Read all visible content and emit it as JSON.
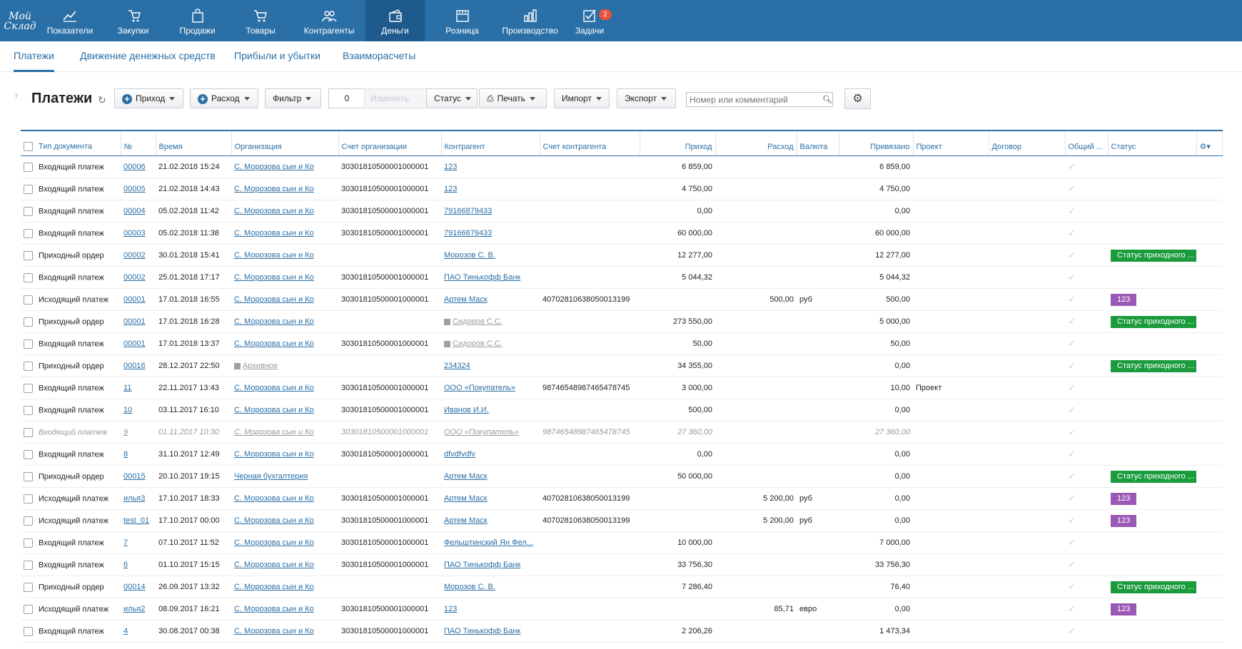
{
  "app": {
    "logo": "Мой Склад"
  },
  "nav": [
    {
      "label": "Показатели",
      "icon": "chart-line-icon"
    },
    {
      "label": "Закупки",
      "icon": "cart-hand-icon"
    },
    {
      "label": "Продажи",
      "icon": "bag-icon"
    },
    {
      "label": "Товары",
      "icon": "cart-icon"
    },
    {
      "label": "Контрагенты",
      "icon": "users-icon"
    },
    {
      "label": "Деньги",
      "icon": "wallet-icon",
      "active": true
    },
    {
      "label": "Розница",
      "icon": "store-icon"
    },
    {
      "label": "Производство",
      "icon": "factory-icon"
    },
    {
      "label": "Задачи",
      "icon": "tasks-icon",
      "badge": "2"
    }
  ],
  "subtabs": [
    "Платежи",
    "Движение денежных средств",
    "Прибыли и убытки",
    "Взаиморасчеты"
  ],
  "toolbar": {
    "help": "?",
    "title": "Платежи",
    "income": "Приход",
    "expense": "Расход",
    "filter": "Фильтр",
    "counter": "0",
    "change": "Изменить",
    "status": "Статус",
    "print": "Печать",
    "import": "Импорт",
    "export": "Экспорт",
    "search_placeholder": "Номер или комментарий"
  },
  "columns": [
    "Тип документа",
    "№",
    "Время",
    "Организация",
    "Счет организации",
    "Контрагент",
    "Счет контрагента",
    "Приход",
    "Расход",
    "Валюта",
    "Привязано",
    "Проект",
    "Договор",
    "Общий ...",
    "Статус"
  ],
  "colors": {
    "green_status": "#1a9b3c",
    "purple_status": "#9b59b6",
    "accent": "#2a6fa6"
  },
  "rows": [
    {
      "type": "Входящий платеж",
      "num": "00006",
      "time": "21.02.2018 15:24",
      "org": "С. Морозова сын и Ко",
      "org_acc": "30301810500001000001",
      "cp": "123",
      "cp_acc": "",
      "income": "6 859,00",
      "expense": "",
      "cur": "",
      "linked": "6 859,00",
      "project": "",
      "status": ""
    },
    {
      "type": "Входящий платеж",
      "num": "00005",
      "time": "21.02.2018 14:43",
      "org": "С. Морозова сын и Ко",
      "org_acc": "30301810500001000001",
      "cp": "123",
      "cp_acc": "",
      "income": "4 750,00",
      "expense": "",
      "cur": "",
      "linked": "4 750,00",
      "project": "",
      "status": ""
    },
    {
      "type": "Входящий платеж",
      "num": "00004",
      "time": "05.02.2018 11:42",
      "org": "С. Морозова сын и Ко",
      "org_acc": "30301810500001000001",
      "cp": "79166879433",
      "cp_acc": "",
      "income": "0,00",
      "expense": "",
      "cur": "",
      "linked": "0,00",
      "project": "",
      "status": ""
    },
    {
      "type": "Входящий платеж",
      "num": "00003",
      "time": "05.02.2018 11:38",
      "org": "С. Морозова сын и Ко",
      "org_acc": "30301810500001000001",
      "cp": "79166879433",
      "cp_acc": "",
      "income": "60 000,00",
      "expense": "",
      "cur": "",
      "linked": "60 000,00",
      "project": "",
      "status": ""
    },
    {
      "type": "Приходный ордер",
      "num": "00002",
      "time": "30.01.2018 15:41",
      "org": "С. Морозова сын и Ко",
      "org_acc": "",
      "cp": "Морозов С. В.",
      "cp_acc": "",
      "income": "12 277,00",
      "expense": "",
      "cur": "",
      "linked": "12 277,00",
      "project": "",
      "status": "Статус приходного ...",
      "status_color": "#1a9b3c"
    },
    {
      "type": "Входящий платеж",
      "num": "00002",
      "time": "25.01.2018 17:17",
      "org": "С. Морозова сын и Ко",
      "org_acc": "30301810500001000001",
      "cp": "ПАО Тинькофф Банк",
      "cp_acc": "",
      "income": "5 044,32",
      "expense": "",
      "cur": "",
      "linked": "5 044,32",
      "project": "",
      "status": ""
    },
    {
      "type": "Исходящий платеж",
      "num": "00001",
      "time": "17.01.2018 16:55",
      "org": "С. Морозова сын и Ко",
      "org_acc": "30301810500001000001",
      "cp": "Артем Маск",
      "cp_acc": "40702810638050013199",
      "income": "",
      "expense": "500,00",
      "cur": "руб",
      "linked": "500,00",
      "project": "",
      "status": "123",
      "status_color": "#9b59b6"
    },
    {
      "type": "Приходный ордер",
      "num": "00001",
      "time": "17.01.2018 16:28",
      "org": "С. Морозова сын и Ко",
      "org_acc": "",
      "cp": "Сидоров С.С.",
      "cp_arch": true,
      "cp_acc": "",
      "income": "273 550,00",
      "expense": "",
      "cur": "",
      "linked": "5 000,00",
      "project": "",
      "status": "Статус приходного ...",
      "status_color": "#1a9b3c"
    },
    {
      "type": "Входящий платеж",
      "num": "00001",
      "time": "17.01.2018 13:37",
      "org": "С. Морозова сын и Ко",
      "org_acc": "30301810500001000001",
      "cp": "Сидоров С.С.",
      "cp_arch": true,
      "cp_acc": "",
      "income": "50,00",
      "expense": "",
      "cur": "",
      "linked": "50,00",
      "project": "",
      "status": ""
    },
    {
      "type": "Приходный ордер",
      "num": "00016",
      "time": "28.12.2017 22:50",
      "org": "Архивное",
      "org_arch": true,
      "org_acc": "",
      "cp": "234324",
      "cp_acc": "",
      "income": "34 355,00",
      "expense": "",
      "cur": "",
      "linked": "0,00",
      "project": "",
      "status": "Статус приходного ...",
      "status_color": "#1a9b3c"
    },
    {
      "type": "Входящий платеж",
      "num": "11",
      "time": "22.11.2017 13:43",
      "org": "С. Морозова сын и Ко",
      "org_acc": "30301810500001000001",
      "cp": "ООО «Покупатель»",
      "cp_acc": "9874654898746547874​5",
      "income": "3 000,00",
      "expense": "",
      "cur": "",
      "linked": "10,00",
      "project": "Проект",
      "status": ""
    },
    {
      "type": "Входящий платеж",
      "num": "10",
      "time": "03.11.2017 16:10",
      "org": "С. Морозова сын и Ко",
      "org_acc": "30301810500001000001",
      "cp": "Иванов И.И.",
      "cp_acc": "",
      "income": "500,00",
      "expense": "",
      "cur": "",
      "linked": "0,00",
      "project": "",
      "status": ""
    },
    {
      "type": "Входящий платеж",
      "num": "9",
      "time": "01.11.2017 10:30",
      "org": "С. Морозова сын и Ко",
      "org_acc": "30301810500001000001",
      "cp": "ООО «Покупатель»",
      "cp_acc": "98746548987465478745",
      "income": "27 360,00",
      "expense": "",
      "cur": "",
      "linked": "27 360,00",
      "project": "",
      "status": "",
      "faded": true
    },
    {
      "type": "Входящий платеж",
      "num": "8",
      "time": "31.10.2017 12:49",
      "org": "С. Морозова сын и Ко",
      "org_acc": "30301810500001000001",
      "cp": "dfvdfvdfv",
      "cp_acc": "",
      "income": "0,00",
      "expense": "",
      "cur": "",
      "linked": "0,00",
      "project": "",
      "status": ""
    },
    {
      "type": "Приходный ордер",
      "num": "00015",
      "time": "20.10.2017 19:15",
      "org": "Черная бухгалтерия",
      "org_acc": "",
      "cp": "Артем Маск",
      "cp_acc": "",
      "income": "50 000,00",
      "expense": "",
      "cur": "",
      "linked": "0,00",
      "project": "",
      "status": "Статус приходного ...",
      "status_color": "#1a9b3c"
    },
    {
      "type": "Исходящий платеж",
      "num": "илья3",
      "time": "17.10.2017 18:33",
      "org": "С. Морозова сын и Ко",
      "org_acc": "30301810500001000001",
      "cp": "Артем Маск",
      "cp_acc": "40702810638050013199",
      "income": "",
      "expense": "5 200,00",
      "cur": "руб",
      "linked": "0,00",
      "project": "",
      "status": "123",
      "status_color": "#9b59b6"
    },
    {
      "type": "Исходящий платеж",
      "num": "test_01",
      "time": "17.10.2017 00:00",
      "org": "С. Морозова сын и Ко",
      "org_acc": "30301810500001000001",
      "cp": "Артем Маск",
      "cp_acc": "40702810638050013199",
      "income": "",
      "expense": "5 200,00",
      "cur": "руб",
      "linked": "0,00",
      "project": "",
      "status": "123",
      "status_color": "#9b59b6"
    },
    {
      "type": "Входящий платеж",
      "num": "7",
      "time": "07.10.2017 11:52",
      "org": "С. Морозова сын и Ко",
      "org_acc": "30301810500001000001",
      "cp": "Фельштинский Ян Фел...",
      "cp_acc": "",
      "income": "10 000,00",
      "expense": "",
      "cur": "",
      "linked": "7 000,00",
      "project": "",
      "status": ""
    },
    {
      "type": "Входящий платеж",
      "num": "6",
      "time": "01.10.2017 15:15",
      "org": "С. Морозова сын и Ко",
      "org_acc": "30301810500001000001",
      "cp": "ПАО Тинькофф Банк",
      "cp_acc": "",
      "income": "33 756,30",
      "expense": "",
      "cur": "",
      "linked": "33 756,30",
      "project": "",
      "status": ""
    },
    {
      "type": "Приходный ордер",
      "num": "00014",
      "time": "26.09.2017 13:32",
      "org": "С. Морозова сын и Ко",
      "org_acc": "",
      "cp": "Морозов С. В.",
      "cp_acc": "",
      "income": "7 286,40",
      "expense": "",
      "cur": "",
      "linked": "76,40",
      "project": "",
      "status": "Статус приходного ...",
      "status_color": "#1a9b3c"
    },
    {
      "type": "Исходящий платеж",
      "num": "илья2",
      "time": "08.09.2017 16:21",
      "org": "С. Морозова сын и Ко",
      "org_acc": "30301810500001000001",
      "cp": "123",
      "cp_acc": "",
      "income": "",
      "expense": "85,71",
      "cur": "евро",
      "linked": "0,00",
      "project": "",
      "status": "123",
      "status_color": "#9b59b6"
    },
    {
      "type": "Входящий платеж",
      "num": "4",
      "time": "30.08.2017 00:38",
      "org": "С. Морозова сын и Ко",
      "org_acc": "30301810500001000001",
      "cp": "ПАО Тинькофф Банк",
      "cp_acc": "",
      "income": "2 206,26",
      "expense": "",
      "cur": "",
      "linked": "1 473,34",
      "project": "",
      "status": ""
    }
  ]
}
